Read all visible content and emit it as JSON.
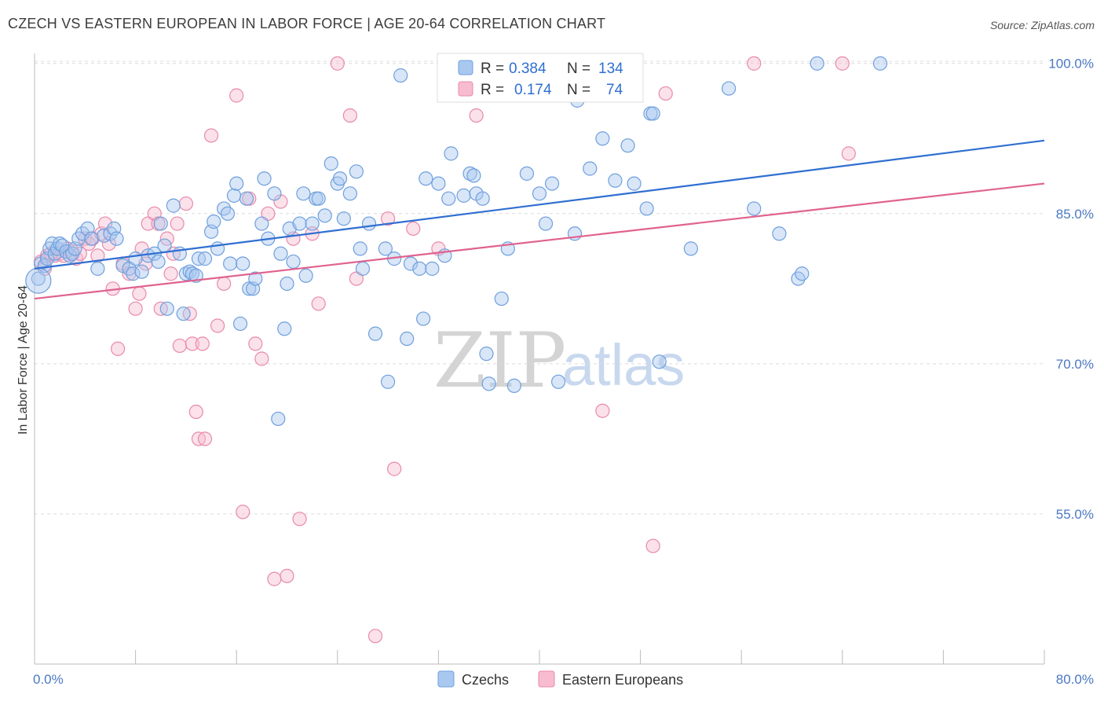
{
  "header": {
    "title": "CZECH VS EASTERN EUROPEAN IN LABOR FORCE | AGE 20-64 CORRELATION CHART",
    "source": "Source: ZipAtlas.com"
  },
  "watermark": {
    "zip": "ZIP",
    "atlas": "atlas"
  },
  "chart_data": {
    "type": "scatter",
    "title": "CZECH VS EASTERN EUROPEAN IN LABOR FORCE | AGE 20-64 CORRELATION CHART",
    "xlabel": "",
    "ylabel": "In Labor Force | Age 20-64",
    "xlim": [
      0,
      80
    ],
    "ylim": [
      40,
      101
    ],
    "x_tick_labels": [
      "0.0%",
      "80.0%"
    ],
    "y_ticks": [
      55,
      70,
      85,
      100
    ],
    "y_tick_labels": [
      "55.0%",
      "70.0%",
      "85.0%",
      "100.0%"
    ],
    "grid": "horizontal dashed",
    "legend_position": "bottom",
    "stats_box_position": "top-center",
    "series": [
      {
        "name": "Czechs",
        "color": "#a9c8f0",
        "stroke": "#6f9fdc",
        "line_color": "#2f6fd1",
        "R": "0.384",
        "N": "134",
        "trend": {
          "x": [
            0,
            80
          ],
          "y": [
            79.5,
            92.3
          ]
        },
        "points": [
          [
            0.3,
            78.5
          ],
          [
            0.5,
            80
          ],
          [
            0.8,
            79.8
          ],
          [
            1,
            80.5
          ],
          [
            1.2,
            81.5
          ],
          [
            1.4,
            82
          ],
          [
            1.6,
            81
          ],
          [
            1.8,
            81.5
          ],
          [
            2,
            82
          ],
          [
            2.2,
            81.8
          ],
          [
            2.5,
            81.2
          ],
          [
            2.8,
            80.8
          ],
          [
            3,
            81
          ],
          [
            3.2,
            81.5
          ],
          [
            3.5,
            82.5
          ],
          [
            3.8,
            83
          ],
          [
            4.2,
            83.5
          ],
          [
            4.5,
            82.5
          ],
          [
            5,
            79.5
          ],
          [
            5.5,
            82.8
          ],
          [
            6,
            83
          ],
          [
            6.3,
            83.5
          ],
          [
            6.5,
            82.5
          ],
          [
            7,
            79.8
          ],
          [
            7.5,
            79.5
          ],
          [
            7.8,
            79
          ],
          [
            8,
            80.5
          ],
          [
            8.5,
            79.2
          ],
          [
            9,
            80.8
          ],
          [
            9.5,
            81
          ],
          [
            9.8,
            80.2
          ],
          [
            10,
            84
          ],
          [
            10.3,
            81.8
          ],
          [
            10.5,
            75.5
          ],
          [
            11,
            85.8
          ],
          [
            11.5,
            81
          ],
          [
            11.8,
            75
          ],
          [
            12,
            79
          ],
          [
            12.3,
            79.2
          ],
          [
            12.5,
            79
          ],
          [
            12.8,
            78.8
          ],
          [
            13,
            80.5
          ],
          [
            13.5,
            80.5
          ],
          [
            14,
            83.2
          ],
          [
            14.2,
            84.2
          ],
          [
            14.5,
            81.5
          ],
          [
            15,
            85.5
          ],
          [
            15.3,
            85
          ],
          [
            15.5,
            80
          ],
          [
            15.8,
            86.8
          ],
          [
            16,
            88
          ],
          [
            16.3,
            74
          ],
          [
            16.5,
            80
          ],
          [
            16.8,
            86.5
          ],
          [
            17,
            77.5
          ],
          [
            17.3,
            77.5
          ],
          [
            17.5,
            78.5
          ],
          [
            18,
            84
          ],
          [
            18.2,
            88.5
          ],
          [
            18.5,
            82.5
          ],
          [
            19,
            87
          ],
          [
            19.3,
            64.5
          ],
          [
            19.5,
            81
          ],
          [
            19.8,
            73.5
          ],
          [
            20,
            78
          ],
          [
            20.2,
            83.5
          ],
          [
            20.5,
            80.2
          ],
          [
            21,
            84
          ],
          [
            21.3,
            87
          ],
          [
            21.5,
            78.8
          ],
          [
            22,
            84
          ],
          [
            22.3,
            86.5
          ],
          [
            22.5,
            86.5
          ],
          [
            23,
            84.8
          ],
          [
            23.5,
            90
          ],
          [
            24,
            88
          ],
          [
            24.2,
            88.5
          ],
          [
            24.5,
            84.5
          ],
          [
            25,
            87
          ],
          [
            25.5,
            89.2
          ],
          [
            25.8,
            81.5
          ],
          [
            26,
            79.5
          ],
          [
            26.5,
            84
          ],
          [
            27,
            73
          ],
          [
            28,
            68.2
          ],
          [
            27.8,
            81.5
          ],
          [
            28.5,
            80.5
          ],
          [
            29,
            98.8
          ],
          [
            29.5,
            72.5
          ],
          [
            29.8,
            80
          ],
          [
            30.5,
            79.5
          ],
          [
            30.8,
            74.5
          ],
          [
            31,
            88.5
          ],
          [
            31.5,
            79.5
          ],
          [
            32,
            88
          ],
          [
            32.5,
            80.8
          ],
          [
            32.8,
            86.5
          ],
          [
            33,
            91
          ],
          [
            34,
            86.8
          ],
          [
            34.5,
            89
          ],
          [
            34.8,
            88.8
          ],
          [
            35,
            87
          ],
          [
            35.5,
            86.5
          ],
          [
            35.8,
            71
          ],
          [
            36,
            68
          ],
          [
            37,
            76.5
          ],
          [
            37.5,
            81.5
          ],
          [
            38,
            67.8
          ],
          [
            39,
            89
          ],
          [
            40,
            87
          ],
          [
            40.5,
            84
          ],
          [
            41,
            88
          ],
          [
            41.5,
            68.2
          ],
          [
            42,
            100
          ],
          [
            42.8,
            83
          ],
          [
            43,
            96.3
          ],
          [
            44,
            89.5
          ],
          [
            45,
            92.5
          ],
          [
            46,
            88.3
          ],
          [
            47,
            91.8
          ],
          [
            47.5,
            88
          ],
          [
            48.5,
            85.5
          ],
          [
            48.8,
            95
          ],
          [
            49,
            95
          ],
          [
            49.5,
            70.2
          ],
          [
            52,
            81.5
          ],
          [
            55,
            97.5
          ],
          [
            57,
            85.5
          ],
          [
            59,
            83
          ],
          [
            60.5,
            78.5
          ],
          [
            60.8,
            79
          ],
          [
            62,
            100
          ],
          [
            67,
            100
          ]
        ]
      },
      {
        "name": "Eastern Europeans",
        "color": "#f7bcd0",
        "stroke": "#e88aac",
        "line_color": "#e0628f",
        "R": "0.174",
        "N": "74",
        "trend": {
          "x": [
            0,
            80
          ],
          "y": [
            76.5,
            88
          ]
        },
        "points": [
          [
            0.5,
            80.2
          ],
          [
            0.8,
            79.5
          ],
          [
            1,
            80.8
          ],
          [
            1.3,
            81
          ],
          [
            1.6,
            80.8
          ],
          [
            2,
            81
          ],
          [
            2.3,
            80.8
          ],
          [
            2.6,
            81.5
          ],
          [
            3,
            81.2
          ],
          [
            3.3,
            80.5
          ],
          [
            3.6,
            81
          ],
          [
            4,
            82.5
          ],
          [
            4.3,
            82
          ],
          [
            4.6,
            82.5
          ],
          [
            5,
            80.8
          ],
          [
            5.3,
            83
          ],
          [
            5.6,
            84
          ],
          [
            5.9,
            82
          ],
          [
            6.2,
            77.5
          ],
          [
            6.6,
            71.5
          ],
          [
            7,
            80
          ],
          [
            7.5,
            79
          ],
          [
            8,
            75.5
          ],
          [
            8.3,
            77
          ],
          [
            8.5,
            81.5
          ],
          [
            8.8,
            80
          ],
          [
            9,
            84
          ],
          [
            9.5,
            85
          ],
          [
            9.8,
            84
          ],
          [
            10,
            75.5
          ],
          [
            10.5,
            82.5
          ],
          [
            10.8,
            79
          ],
          [
            11,
            81
          ],
          [
            11.3,
            84
          ],
          [
            11.5,
            71.8
          ],
          [
            12,
            86
          ],
          [
            12.3,
            75
          ],
          [
            12.5,
            72
          ],
          [
            12.8,
            65.2
          ],
          [
            13,
            62.5
          ],
          [
            13.3,
            72
          ],
          [
            13.5,
            62.5
          ],
          [
            14,
            92.8
          ],
          [
            14.5,
            73.8
          ],
          [
            15,
            78
          ],
          [
            16,
            96.8
          ],
          [
            16.5,
            55.2
          ],
          [
            17,
            86.5
          ],
          [
            17.5,
            72
          ],
          [
            18,
            70.5
          ],
          [
            18.5,
            85
          ],
          [
            19,
            48.5
          ],
          [
            19.5,
            86.2
          ],
          [
            20,
            48.8
          ],
          [
            20.5,
            82.5
          ],
          [
            21,
            54.5
          ],
          [
            22,
            83
          ],
          [
            22.5,
            76
          ],
          [
            24,
            100
          ],
          [
            25,
            94.8
          ],
          [
            25.5,
            78.5
          ],
          [
            27,
            42.8
          ],
          [
            28,
            84.5
          ],
          [
            28.5,
            59.5
          ],
          [
            30,
            83.5
          ],
          [
            32,
            81.5
          ],
          [
            35,
            94.8
          ],
          [
            40,
            100
          ],
          [
            45,
            65.3
          ],
          [
            47,
            100
          ],
          [
            49,
            51.8
          ],
          [
            50,
            97
          ],
          [
            57,
            100
          ],
          [
            64,
            100
          ],
          [
            64.5,
            91
          ]
        ]
      }
    ]
  },
  "legend": {
    "items": [
      {
        "label": "Czechs"
      },
      {
        "label": "Eastern Europeans"
      }
    ]
  },
  "stats": {
    "r_label": "R =",
    "n_label": "N ="
  }
}
